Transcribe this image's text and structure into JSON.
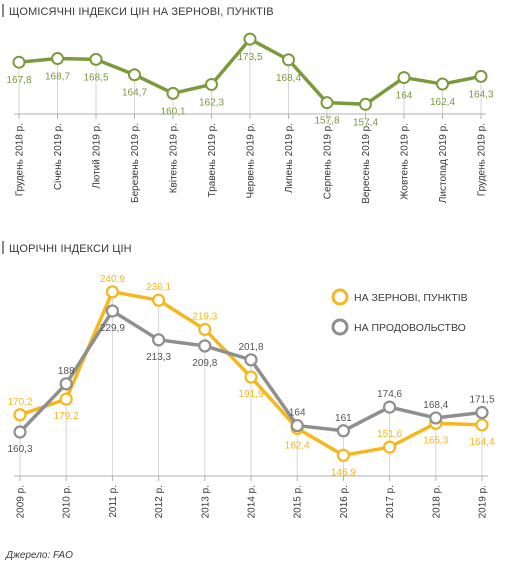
{
  "chart_data": [
    {
      "type": "line",
      "title": "ЩОМІСЯЧНІ ІНДЕКСИ ЦІН НА ЗЕРНОВІ, ПУНКТІВ",
      "categories": [
        "Грудень 2018 р.",
        "Січень 2019 р.",
        "Лютий 2019 р.",
        "Березень 2019 р.",
        "Квітень 2019 р.",
        "Травень 2019 р.",
        "Червень 2019 р.",
        "Липень 2019 р.",
        "Серпень 2019 р.",
        "Вересень 2019 р.",
        "Жовтень 2019 р.",
        "Листопад 2019 р.",
        "Грудень 2019 р."
      ],
      "series": [
        {
          "values": [
            167.8,
            168.7,
            168.5,
            164.7,
            160.1,
            162.3,
            173.5,
            168.4,
            157.8,
            157.4,
            164,
            162.4,
            164.3
          ],
          "labels": [
            "167,8",
            "168,7",
            "168,5",
            "164,7",
            "160,1",
            "162,3",
            "173,5",
            "168,4",
            "157,8",
            "157,4",
            "164",
            "162,4",
            "164,3"
          ],
          "color": "#7a9a3c"
        }
      ],
      "ylim": [
        155,
        176
      ]
    },
    {
      "type": "line",
      "title": "ЩОРІЧНІ ІНДЕКСИ ЦІН",
      "categories": [
        "2009 р.",
        "2010 р.",
        "2011 р.",
        "2012 р.",
        "2013 р.",
        "2014 р.",
        "2015 р.",
        "2016 р.",
        "2017 р.",
        "2018 р.",
        "2019 р."
      ],
      "series": [
        {
          "name": "НА ЗЕРНОВІ, ПУНКТІВ",
          "color": "#f5b81c",
          "values": [
            170.2,
            179.2,
            240.9,
            236.1,
            219.3,
            191.9,
            162.4,
            146.9,
            151.6,
            165.3,
            164.4
          ],
          "labels": [
            "170,2",
            "179,2",
            "240,9",
            "236,1",
            "219,3",
            "191,9",
            "162,4",
            "146,9",
            "151,6",
            "165,3",
            "164,4"
          ]
        },
        {
          "name": "НА ПРОДОВОЛЬСТВО",
          "color": "#8f8f8f",
          "values": [
            160.3,
            188,
            229.9,
            213.3,
            209.8,
            201.8,
            164,
            161,
            174.6,
            168.4,
            171.5
          ],
          "labels": [
            "160,3",
            "188",
            "229,9",
            "213,3",
            "209,8",
            "201,8",
            "164",
            "161",
            "174,6",
            "168,4",
            "171,5"
          ]
        }
      ],
      "legend": "top-right",
      "ylim": [
        135,
        250
      ]
    }
  ],
  "source": "Джерело: FAO"
}
